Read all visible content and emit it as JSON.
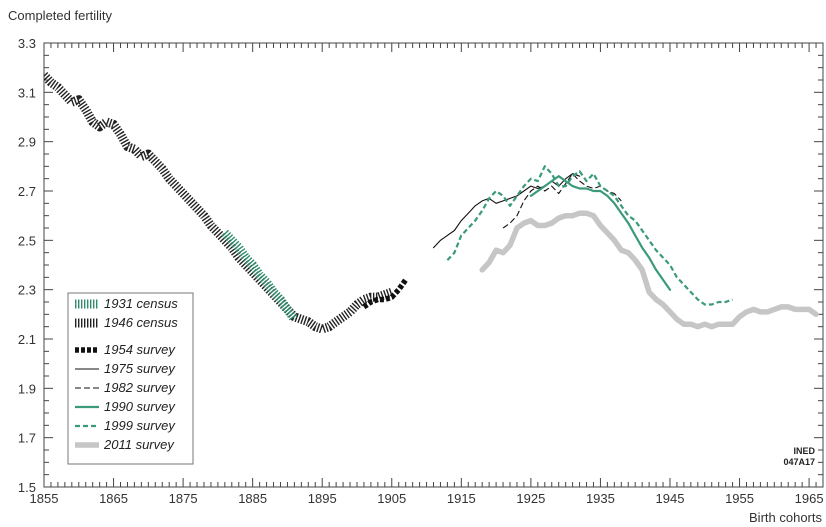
{
  "chart_data": {
    "type": "line",
    "ylabel": "Completed fertility",
    "xlabel": "Birth cohorts",
    "xlim": [
      1855,
      1967
    ],
    "ylim": [
      1.5,
      3.3
    ],
    "x_ticks": [
      "1855",
      "1865",
      "1875",
      "1885",
      "1895",
      "1905",
      "1915",
      "1925",
      "1935",
      "1945",
      "1955",
      "1965"
    ],
    "y_ticks": [
      "1.5",
      "1.7",
      "1.9",
      "2.1",
      "2.3",
      "2.5",
      "2.7",
      "2.9",
      "3.1",
      "3.3"
    ],
    "legend_position": "bottom-left",
    "watermark": "INED\n047A17",
    "series": [
      {
        "name": "1931 census",
        "color": "#2e8b6b",
        "style": "hatch",
        "x": [
          1881,
          1882,
          1883,
          1884,
          1885,
          1886,
          1887,
          1888,
          1889,
          1890,
          1891
        ],
        "y": [
          2.53,
          2.5,
          2.47,
          2.43,
          2.4,
          2.36,
          2.33,
          2.29,
          2.26,
          2.22,
          2.18
        ]
      },
      {
        "name": "1946 census",
        "color": "#222222",
        "style": "hatch",
        "x": [
          1855,
          1856,
          1857,
          1858,
          1859,
          1860,
          1861,
          1862,
          1863,
          1864,
          1865,
          1866,
          1867,
          1868,
          1869,
          1870,
          1871,
          1872,
          1873,
          1874,
          1875,
          1876,
          1877,
          1878,
          1879,
          1880,
          1881,
          1882,
          1883,
          1884,
          1885,
          1886,
          1887,
          1888,
          1889,
          1890,
          1891,
          1892,
          1893,
          1894,
          1895,
          1896,
          1897,
          1898,
          1899,
          1900,
          1901,
          1902,
          1903,
          1904,
          1905
        ],
        "y": [
          3.17,
          3.14,
          3.12,
          3.09,
          3.06,
          3.07,
          3.03,
          2.98,
          2.96,
          2.98,
          2.97,
          2.93,
          2.88,
          2.87,
          2.84,
          2.85,
          2.82,
          2.79,
          2.75,
          2.72,
          2.69,
          2.66,
          2.63,
          2.6,
          2.56,
          2.53,
          2.5,
          2.47,
          2.43,
          2.4,
          2.37,
          2.34,
          2.31,
          2.28,
          2.25,
          2.22,
          2.19,
          2.18,
          2.17,
          2.15,
          2.14,
          2.15,
          2.17,
          2.19,
          2.21,
          2.24,
          2.26,
          2.27,
          2.27,
          2.28,
          2.29
        ]
      },
      {
        "name": "1954 survey",
        "color": "#111111",
        "style": "dotted-thick",
        "x": [
          1901,
          1902,
          1903,
          1904,
          1905,
          1906,
          1907
        ],
        "y": [
          2.23,
          2.25,
          2.26,
          2.26,
          2.27,
          2.3,
          2.34
        ]
      },
      {
        "name": "1975 survey",
        "color": "#111111",
        "style": "solid-thin",
        "x": [
          1911,
          1912,
          1913,
          1914,
          1915,
          1916,
          1917,
          1918,
          1919,
          1920,
          1921,
          1922,
          1923,
          1924,
          1925,
          1926,
          1927,
          1928,
          1929,
          1930,
          1931,
          1932
        ],
        "y": [
          2.47,
          2.5,
          2.52,
          2.54,
          2.58,
          2.61,
          2.64,
          2.66,
          2.67,
          2.65,
          2.66,
          2.67,
          2.68,
          2.7,
          2.72,
          2.71,
          2.72,
          2.74,
          2.72,
          2.75,
          2.77,
          2.76
        ]
      },
      {
        "name": "1982 survey",
        "color": "#111111",
        "style": "dashed-thin",
        "x": [
          1921,
          1922,
          1923,
          1924,
          1925,
          1926,
          1927,
          1928,
          1929,
          1930,
          1931,
          1932,
          1933,
          1934,
          1935,
          1936,
          1937,
          1938
        ],
        "y": [
          2.55,
          2.57,
          2.6,
          2.66,
          2.7,
          2.72,
          2.7,
          2.72,
          2.69,
          2.73,
          2.77,
          2.74,
          2.72,
          2.71,
          2.72,
          2.7,
          2.69,
          2.66
        ]
      },
      {
        "name": "1990 survey",
        "color": "#3a9a7a",
        "style": "solid-medium",
        "x": [
          1925,
          1926,
          1927,
          1928,
          1929,
          1930,
          1931,
          1932,
          1933,
          1934,
          1935,
          1936,
          1937,
          1938,
          1939,
          1940,
          1941,
          1942,
          1943,
          1944,
          1945
        ],
        "y": [
          2.68,
          2.7,
          2.72,
          2.74,
          2.76,
          2.74,
          2.72,
          2.71,
          2.71,
          2.7,
          2.7,
          2.68,
          2.65,
          2.61,
          2.57,
          2.52,
          2.47,
          2.43,
          2.38,
          2.34,
          2.3
        ]
      },
      {
        "name": "1999 survey",
        "color": "#3a9a7a",
        "style": "dashed-medium",
        "x": [
          1913,
          1914,
          1915,
          1916,
          1917,
          1918,
          1919,
          1920,
          1921,
          1922,
          1923,
          1924,
          1925,
          1926,
          1927,
          1928,
          1929,
          1930,
          1931,
          1932,
          1933,
          1934,
          1935,
          1936,
          1937,
          1938,
          1939,
          1940,
          1941,
          1942,
          1943,
          1944,
          1945,
          1946,
          1947,
          1948,
          1949,
          1950,
          1951,
          1952,
          1953,
          1954
        ],
        "y": [
          2.42,
          2.45,
          2.52,
          2.55,
          2.58,
          2.62,
          2.67,
          2.7,
          2.68,
          2.64,
          2.68,
          2.72,
          2.75,
          2.74,
          2.8,
          2.77,
          2.72,
          2.72,
          2.76,
          2.78,
          2.74,
          2.77,
          2.72,
          2.7,
          2.68,
          2.64,
          2.6,
          2.58,
          2.54,
          2.5,
          2.46,
          2.43,
          2.4,
          2.35,
          2.32,
          2.29,
          2.26,
          2.24,
          2.24,
          2.25,
          2.25,
          2.26
        ]
      },
      {
        "name": "2011 survey",
        "color": "#c6c6c6",
        "style": "solid-thick",
        "x": [
          1918,
          1919,
          1920,
          1921,
          1922,
          1923,
          1924,
          1925,
          1926,
          1927,
          1928,
          1929,
          1930,
          1931,
          1932,
          1933,
          1934,
          1935,
          1936,
          1937,
          1938,
          1939,
          1940,
          1941,
          1942,
          1943,
          1944,
          1945,
          1946,
          1947,
          1948,
          1949,
          1950,
          1951,
          1952,
          1953,
          1954,
          1955,
          1956,
          1957,
          1958,
          1959,
          1960,
          1961,
          1962,
          1963,
          1964,
          1965,
          1966
        ],
        "y": [
          2.38,
          2.41,
          2.46,
          2.45,
          2.48,
          2.55,
          2.57,
          2.58,
          2.56,
          2.56,
          2.57,
          2.59,
          2.6,
          2.6,
          2.61,
          2.61,
          2.6,
          2.56,
          2.53,
          2.5,
          2.46,
          2.45,
          2.42,
          2.38,
          2.29,
          2.26,
          2.24,
          2.21,
          2.18,
          2.16,
          2.16,
          2.15,
          2.16,
          2.15,
          2.16,
          2.16,
          2.16,
          2.19,
          2.21,
          2.22,
          2.21,
          2.21,
          2.22,
          2.23,
          2.23,
          2.22,
          2.22,
          2.22,
          2.2
        ]
      }
    ]
  }
}
